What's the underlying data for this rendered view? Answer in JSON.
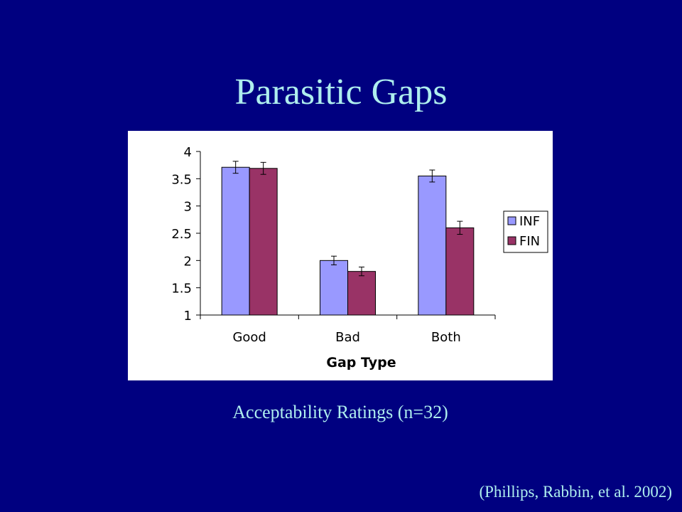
{
  "slide": {
    "title": "Parasitic Gaps",
    "caption": "Acceptability Ratings (n=32)",
    "citation": "(Phillips, Rabbin, et al. 2002)"
  },
  "chart_data": {
    "type": "bar",
    "xlabel": "Gap Type",
    "ylabel": "",
    "categories": [
      "Good",
      "Bad",
      "Both"
    ],
    "ylim": [
      1,
      4
    ],
    "yticks": [
      "1",
      "1.5",
      "2",
      "2.5",
      "3",
      "3.5",
      "4"
    ],
    "grid": false,
    "legend_position": "right",
    "series": [
      {
        "name": "INF",
        "color": "#9999ff",
        "values": [
          3.71,
          2.0,
          3.55
        ],
        "errors": [
          0.11,
          0.08,
          0.11
        ]
      },
      {
        "name": "FIN",
        "color": "#993366",
        "values": [
          3.69,
          1.8,
          2.6
        ],
        "errors": [
          0.11,
          0.08,
          0.12
        ]
      }
    ]
  }
}
